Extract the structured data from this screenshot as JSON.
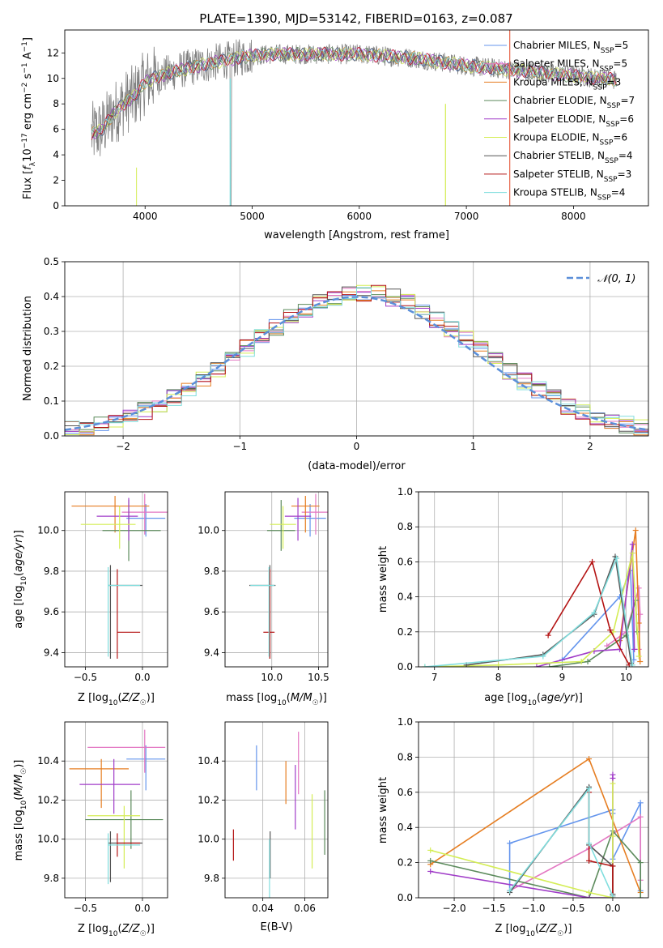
{
  "title": "PLATE=1390, MJD=53142, FIBERID=0163, z=0.087",
  "colors": {
    "Chabrier MILES": "#6495ed",
    "Salpeter MILES": "#e377c2",
    "Kroupa MILES": "#e67e22",
    "Chabrier ELODIE": "#5b8a5b",
    "Salpeter ELODIE": "#a03cc8",
    "Kroupa ELODIE": "#d4ed55",
    "Chabrier STELIB": "#555555",
    "Salpeter STELIB": "#b41414",
    "Kroupa STELIB": "#80dede",
    "data": "#7f7f7f",
    "normal": "#5b8fd9"
  },
  "chart_data": [
    {
      "type": "line",
      "panel": "spectrum",
      "title": "PLATE=1390, MJD=53142, FIBERID=0163, z=0.087",
      "xlabel": "wavelength [Angstrom, rest frame]",
      "ylabel": "Flux [f_λ10^-17 erg cm^-2 s^-1 A^-1]",
      "xlim": [
        3250,
        8700
      ],
      "ylim": [
        0,
        13.8
      ],
      "xticks": [
        4000,
        5000,
        6000,
        7000,
        8000
      ],
      "yticks": [
        0,
        2,
        4,
        6,
        8,
        10,
        12
      ],
      "legend_position": "right",
      "legend": [
        "Chabrier MILES, N_SSP=5",
        "Salpeter MILES, N_SSP=5",
        "Kroupa MILES, N_SSP=3",
        "Chabrier ELODIE, N_SSP=7",
        "Salpeter ELODIE, N_SSP=6",
        "Kroupa ELODIE, N_SSP=6",
        "Chabrier STELIB, N_SSP=4",
        "Salpeter STELIB, N_SSP=3",
        "Kroupa STELIB, N_SSP=4"
      ],
      "continuum": {
        "x": [
          3500,
          3600,
          3700,
          3800,
          3900,
          4000,
          4100,
          4300,
          4500,
          4800,
          5000,
          5200,
          5500,
          6000,
          6500,
          7000,
          7500,
          8000,
          8400
        ],
        "y": [
          5.6,
          6.0,
          7.2,
          8.0,
          8.6,
          9.7,
          10.1,
          10.6,
          11.0,
          11.5,
          11.8,
          11.9,
          11.9,
          11.9,
          11.6,
          11.0,
          10.6,
          10.2,
          9.9
        ]
      },
      "grid": false
    },
    {
      "type": "line",
      "panel": "residuals",
      "xlabel": "(data-model)/error",
      "ylabel": "Normed distribution",
      "xlim": [
        -2.5,
        2.5
      ],
      "ylim": [
        0,
        0.5
      ],
      "xticks": [
        -2,
        -1,
        0,
        1,
        2
      ],
      "yticks": [
        0.0,
        0.1,
        0.2,
        0.3,
        0.4,
        0.5
      ],
      "legend": [
        "𝒩(0, 1)"
      ],
      "legend_position": "top-right",
      "grid": true
    },
    {
      "type": "scatter",
      "panel": "age-Z",
      "xlabel": "Z [log10(Z/Z☉)]",
      "ylabel": "age  [log10(age/yr)]",
      "xlim": [
        -0.68,
        0.22
      ],
      "ylim": [
        9.33,
        10.19
      ],
      "xticks": [
        -0.5,
        0.0
      ],
      "yticks": [
        9.4,
        9.6,
        9.8,
        10.0
      ],
      "grid": true,
      "points": [
        {
          "model": "Chabrier MILES",
          "x": 0.03,
          "y": 10.06,
          "xerr": [
            0.17,
            0.17
          ],
          "yerr": [
            0.09,
            0.07
          ]
        },
        {
          "model": "Salpeter MILES",
          "x": 0.02,
          "y": 10.09,
          "xerr": [
            0.2,
            0.2
          ],
          "yerr": [
            0.11,
            0.09
          ]
        },
        {
          "model": "Kroupa MILES",
          "x": -0.24,
          "y": 10.12,
          "xerr": [
            0.38,
            0.3
          ],
          "yerr": [
            0.13,
            0.05
          ]
        },
        {
          "model": "Chabrier ELODIE",
          "x": -0.12,
          "y": 10.0,
          "xerr": [
            0.23,
            0.28
          ],
          "yerr": [
            0.15,
            0.15
          ]
        },
        {
          "model": "Salpeter ELODIE",
          "x": -0.12,
          "y": 10.07,
          "xerr": [
            0.28,
            0.08
          ],
          "yerr": [
            0.12,
            0.09
          ]
        },
        {
          "model": "Kroupa ELODIE",
          "x": -0.2,
          "y": 10.03,
          "xerr": [
            0.34,
            0.14
          ],
          "yerr": [
            0.12,
            0.09
          ]
        },
        {
          "model": "Chabrier STELIB",
          "x": -0.28,
          "y": 9.73,
          "xerr": [
            0.02,
            0.28
          ],
          "yerr": [
            0.36,
            0.1
          ]
        },
        {
          "model": "Salpeter STELIB",
          "x": -0.22,
          "y": 9.5,
          "xerr": [
            0.0,
            0.2
          ],
          "yerr": [
            0.13,
            0.31
          ]
        },
        {
          "model": "Kroupa STELIB",
          "x": -0.3,
          "y": 9.73,
          "xerr": [
            0.0,
            0.28
          ],
          "yerr": [
            0.35,
            0.09
          ]
        }
      ]
    },
    {
      "type": "scatter",
      "panel": "age-mass",
      "xlabel": "mass [log10(M/M☉)]",
      "ylabel": "",
      "xlim": [
        9.5,
        10.6
      ],
      "ylim": [
        9.33,
        10.19
      ],
      "xticks": [
        10.0,
        10.5
      ],
      "yticks": [
        9.4,
        9.6,
        9.8,
        10.0
      ],
      "grid": true,
      "points": [
        {
          "model": "Chabrier MILES",
          "x": 10.41,
          "y": 10.06,
          "xerr": [
            0.17,
            0.17
          ],
          "yerr": [
            0.09,
            0.07
          ]
        },
        {
          "model": "Salpeter MILES",
          "x": 10.47,
          "y": 10.09,
          "xerr": [
            0.15,
            0.15
          ],
          "yerr": [
            0.11,
            0.09
          ]
        },
        {
          "model": "Kroupa MILES",
          "x": 10.36,
          "y": 10.12,
          "xerr": [
            0.15,
            0.15
          ],
          "yerr": [
            0.13,
            0.05
          ]
        },
        {
          "model": "Chabrier ELODIE",
          "x": 10.1,
          "y": 10.0,
          "xerr": [
            0.15,
            0.15
          ],
          "yerr": [
            0.1,
            0.15
          ]
        },
        {
          "model": "Salpeter ELODIE",
          "x": 10.28,
          "y": 10.07,
          "xerr": [
            0.14,
            0.14
          ],
          "yerr": [
            0.12,
            0.09
          ]
        },
        {
          "model": "Kroupa ELODIE",
          "x": 10.12,
          "y": 10.03,
          "xerr": [
            0.14,
            0.14
          ],
          "yerr": [
            0.12,
            0.09
          ]
        },
        {
          "model": "Chabrier STELIB",
          "x": 9.98,
          "y": 9.73,
          "xerr": [
            0.22,
            0.06
          ],
          "yerr": [
            0.36,
            0.1
          ]
        },
        {
          "model": "Salpeter STELIB",
          "x": 9.98,
          "y": 9.5,
          "xerr": [
            0.07,
            0.05
          ],
          "yerr": [
            0.13,
            0.31
          ]
        },
        {
          "model": "Kroupa STELIB",
          "x": 9.97,
          "y": 9.73,
          "xerr": [
            0.2,
            0.06
          ],
          "yerr": [
            0.35,
            0.09
          ]
        }
      ]
    },
    {
      "type": "line",
      "panel": "weight-age",
      "xlabel": "age  [log10(age/yr)]",
      "ylabel": "mass weight",
      "xlim": [
        6.75,
        10.35
      ],
      "ylim": [
        0,
        1.0
      ],
      "xticks": [
        7,
        8,
        9,
        10
      ],
      "yticks": [
        0.0,
        0.2,
        0.4,
        0.6,
        0.8,
        1.0
      ],
      "grid": true,
      "series": [
        {
          "model": "Chabrier MILES",
          "x": [
            9.0,
            9.9,
            10.07,
            10.12
          ],
          "y": [
            0.04,
            0.4,
            0.55,
            0.04
          ]
        },
        {
          "model": "Salpeter MILES",
          "x": [
            9.7,
            10.0,
            10.2,
            10.22,
            10.2
          ],
          "y": [
            0.12,
            0.2,
            0.45,
            0.3,
            0.1
          ]
        },
        {
          "model": "Kroupa MILES",
          "x": [
            9.9,
            10.15,
            10.2,
            10.22
          ],
          "y": [
            0.15,
            0.78,
            0.25,
            0.03
          ]
        },
        {
          "model": "Chabrier ELODIE",
          "x": [
            8.8,
            9.4,
            10.0,
            10.15,
            10.17
          ],
          "y": [
            0.0,
            0.03,
            0.18,
            0.38,
            0.2
          ]
        },
        {
          "model": "Salpeter ELODIE",
          "x": [
            8.6,
            9.5,
            9.9,
            10.1,
            10.13
          ],
          "y": [
            0.0,
            0.09,
            0.1,
            0.7,
            0.1
          ]
        },
        {
          "model": "Kroupa ELODIE",
          "x": [
            6.85,
            8.0,
            9.3,
            9.8,
            10.1,
            10.2
          ],
          "y": [
            0.0,
            0.01,
            0.03,
            0.2,
            0.65,
            0.06
          ]
        },
        {
          "model": "Chabrier STELIB",
          "x": [
            7.5,
            8.7,
            9.5,
            9.83,
            10.08
          ],
          "y": [
            0.01,
            0.07,
            0.3,
            0.63,
            0.02
          ]
        },
        {
          "model": "Salpeter STELIB",
          "x": [
            8.78,
            9.47,
            9.75,
            10.05
          ],
          "y": [
            0.18,
            0.6,
            0.21,
            0.01
          ]
        },
        {
          "model": "Kroupa STELIB",
          "x": [
            6.85,
            8.7,
            9.5,
            9.85,
            10.1
          ],
          "y": [
            0.0,
            0.06,
            0.31,
            0.62,
            0.01
          ]
        }
      ]
    },
    {
      "type": "scatter",
      "panel": "mass-Z",
      "xlabel": "Z [log10(Z/Z☉)]",
      "ylabel": "mass [log10(M/M☉)]",
      "xlim": [
        -0.68,
        0.22
      ],
      "ylim": [
        9.7,
        10.6
      ],
      "xticks": [
        -0.5,
        0.0
      ],
      "yticks": [
        9.8,
        10.0,
        10.2,
        10.4
      ],
      "grid": true,
      "points": [
        {
          "model": "Chabrier MILES",
          "x": 0.03,
          "y": 10.41,
          "xerr": [
            0.17,
            0.17
          ],
          "yerr": [
            0.16,
            0.07
          ]
        },
        {
          "model": "Salpeter MILES",
          "x": 0.02,
          "y": 10.47,
          "xerr": [
            0.5,
            0.18
          ],
          "yerr": [
            0.13,
            0.09
          ]
        },
        {
          "model": "Kroupa MILES",
          "x": -0.36,
          "y": 10.36,
          "xerr": [
            0.28,
            0.24
          ],
          "yerr": [
            0.2,
            0.05
          ]
        },
        {
          "model": "Chabrier ELODIE",
          "x": -0.1,
          "y": 10.1,
          "xerr": [
            0.4,
            0.28
          ],
          "yerr": [
            0.15,
            0.15
          ]
        },
        {
          "model": "Salpeter ELODIE",
          "x": -0.25,
          "y": 10.28,
          "xerr": [
            0.3,
            0.23
          ],
          "yerr": [
            0.15,
            0.13
          ]
        },
        {
          "model": "Kroupa ELODIE",
          "x": -0.16,
          "y": 10.12,
          "xerr": [
            0.32,
            0.14
          ],
          "yerr": [
            0.27,
            0.05
          ]
        },
        {
          "model": "Chabrier STELIB",
          "x": -0.28,
          "y": 9.98,
          "xerr": [
            0.02,
            0.28
          ],
          "yerr": [
            0.2,
            0.06
          ]
        },
        {
          "model": "Salpeter STELIB",
          "x": -0.22,
          "y": 9.98,
          "xerr": [
            0.0,
            0.2
          ],
          "yerr": [
            0.07,
            0.05
          ]
        },
        {
          "model": "Kroupa STELIB",
          "x": -0.3,
          "y": 9.97,
          "xerr": [
            0.0,
            0.28
          ],
          "yerr": [
            0.2,
            0.06
          ]
        }
      ]
    },
    {
      "type": "scatter",
      "panel": "mass-EBV",
      "xlabel": "E(B-V)",
      "ylabel": "",
      "xlim": [
        0.022,
        0.071
      ],
      "ylim": [
        9.7,
        10.6
      ],
      "xticks": [
        0.04,
        0.06
      ],
      "yticks": [
        9.8,
        10.0,
        10.2,
        10.4
      ],
      "grid": true,
      "points": [
        {
          "model": "Chabrier MILES",
          "x": 0.037,
          "y": 10.36,
          "xerr": [
            0,
            0
          ],
          "yerr": [
            0.11,
            0.12
          ]
        },
        {
          "model": "Salpeter MILES",
          "x": 0.057,
          "y": 10.37,
          "xerr": [
            0,
            0
          ],
          "yerr": [
            0.14,
            0.18
          ]
        },
        {
          "model": "Kroupa MILES",
          "x": 0.051,
          "y": 10.28,
          "xerr": [
            0,
            0
          ],
          "yerr": [
            0.1,
            0.12
          ]
        },
        {
          "model": "Chabrier ELODIE",
          "x": 0.0695,
          "y": 10.09,
          "xerr": [
            0,
            0
          ],
          "yerr": [
            0.17,
            0.16
          ]
        },
        {
          "model": "Salpeter ELODIE",
          "x": 0.0555,
          "y": 10.25,
          "xerr": [
            0,
            0
          ],
          "yerr": [
            0.2,
            0.13
          ]
        },
        {
          "model": "Kroupa ELODIE",
          "x": 0.0635,
          "y": 10.04,
          "xerr": [
            0,
            0
          ],
          "yerr": [
            0.19,
            0.19
          ]
        },
        {
          "model": "Chabrier STELIB",
          "x": 0.0435,
          "y": 9.95,
          "xerr": [
            0,
            0
          ],
          "yerr": [
            0.15,
            0.09
          ]
        },
        {
          "model": "Salpeter STELIB",
          "x": 0.026,
          "y": 9.97,
          "xerr": [
            0,
            0
          ],
          "yerr": [
            0.08,
            0.08
          ]
        },
        {
          "model": "Kroupa STELIB",
          "x": 0.0432,
          "y": 9.9,
          "xerr": [
            0,
            0
          ],
          "yerr": [
            0.2,
            0.1
          ]
        }
      ]
    },
    {
      "type": "line",
      "panel": "weight-Z",
      "xlabel": "Z [log10(Z/Z☉)]",
      "ylabel": "mass weight",
      "xlim": [
        -2.45,
        0.45
      ],
      "ylim": [
        0,
        1.0
      ],
      "xticks": [
        -2.0,
        -1.5,
        -1.0,
        -0.5,
        0.0
      ],
      "yticks": [
        0.0,
        0.2,
        0.4,
        0.6,
        0.8,
        1.0
      ],
      "grid": true,
      "series": [
        {
          "model": "Chabrier MILES",
          "x": [
            -1.3,
            -1.3,
            0.0,
            0.0,
            0.0,
            0.35,
            0.35
          ],
          "y": [
            0.04,
            0.31,
            0.5,
            0.48,
            0.22,
            0.54,
            0.04
          ]
        },
        {
          "model": "Salpeter MILES",
          "x": [
            -1.3,
            -0.3,
            0.35,
            0.35
          ],
          "y": [
            0.04,
            0.28,
            0.46,
            0.1
          ]
        },
        {
          "model": "Kroupa MILES",
          "x": [
            -2.3,
            -0.3,
            0.35
          ],
          "y": [
            0.19,
            0.79,
            0.03
          ]
        },
        {
          "model": "Chabrier ELODIE",
          "x": [
            -2.3,
            -0.3,
            0.0,
            0.35,
            0.35
          ],
          "y": [
            0.21,
            0.0,
            0.38,
            0.2,
            0.0
          ]
        },
        {
          "model": "Salpeter ELODIE",
          "x": [
            -2.3,
            -0.3,
            0.0,
            0.0,
            0.0
          ],
          "y": [
            0.15,
            0.0,
            0.0,
            0.7,
            0.68
          ]
        },
        {
          "model": "Kroupa ELODIE",
          "x": [
            -2.3,
            -0.3,
            0.0,
            0.0,
            0.0
          ],
          "y": [
            0.27,
            0.03,
            0.0,
            0.65,
            0.35
          ]
        },
        {
          "model": "Chabrier STELIB",
          "x": [
            -1.3,
            -0.3,
            -0.3,
            0.0,
            0.0
          ],
          "y": [
            0.03,
            0.63,
            0.3,
            0.18,
            0.02
          ]
        },
        {
          "model": "Salpeter STELIB",
          "x": [
            -0.3,
            -0.3,
            0.0,
            0.0
          ],
          "y": [
            0.6,
            0.21,
            0.18,
            0.01
          ]
        },
        {
          "model": "Kroupa STELIB",
          "x": [
            -1.3,
            -0.3,
            -0.3,
            0.0
          ],
          "y": [
            0.04,
            0.62,
            0.31,
            0.01
          ]
        }
      ]
    }
  ]
}
